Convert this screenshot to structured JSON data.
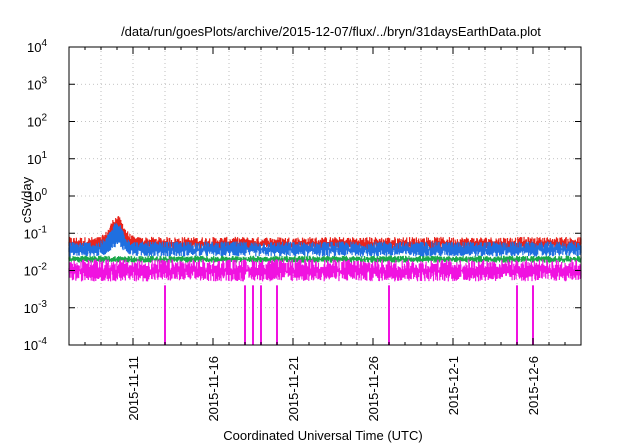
{
  "chart_data": {
    "type": "line",
    "title": "/data/run/goesPlots/archive/2015-12-07/flux/../bryn/31daysEarthData.plot",
    "xlabel": "Coordinated Universal Time (UTC)",
    "ylabel": "cSv/day",
    "x_range": [
      "2015-11-07",
      "2015-12-09"
    ],
    "x_ticks": [
      "2015-11-11",
      "2015-11-16",
      "2015-11-21",
      "2015-11-26",
      "2015-12-1",
      "2015-12-6"
    ],
    "y_scale": "log",
    "ylim": [
      0.0001,
      10000
    ],
    "y_ticks": [
      {
        "base": "10",
        "exp": "-4"
      },
      {
        "base": "10",
        "exp": "-3"
      },
      {
        "base": "10",
        "exp": "-2"
      },
      {
        "base": "10",
        "exp": "-1"
      },
      {
        "base": "10",
        "exp": "0"
      },
      {
        "base": "10",
        "exp": "1"
      },
      {
        "base": "10",
        "exp": "2"
      },
      {
        "base": "10",
        "exp": "3"
      },
      {
        "base": "10",
        "exp": "4"
      }
    ],
    "grid": true,
    "legend": false,
    "series": [
      {
        "color": "#e8231b",
        "typical_low": 0.03,
        "typical_high": 0.08,
        "peak": {
          "date": "2015-11-10",
          "value": 0.3
        }
      },
      {
        "color": "#1f6fe0",
        "typical_low": 0.02,
        "typical_high": 0.06,
        "peak": {
          "date": "2015-11-10",
          "value": 0.2
        }
      },
      {
        "color": "#1aa84a",
        "typical_low": 0.015,
        "typical_high": 0.025
      },
      {
        "color": "#f012e0",
        "typical_low": 0.004,
        "typical_high": 0.02,
        "dropouts": [
          "2015-11-13",
          "2015-11-18",
          "2015-11-18.5",
          "2015-11-19",
          "2015-11-20",
          "2015-11-27",
          "2015-12-5",
          "2015-12-6"
        ]
      }
    ]
  }
}
